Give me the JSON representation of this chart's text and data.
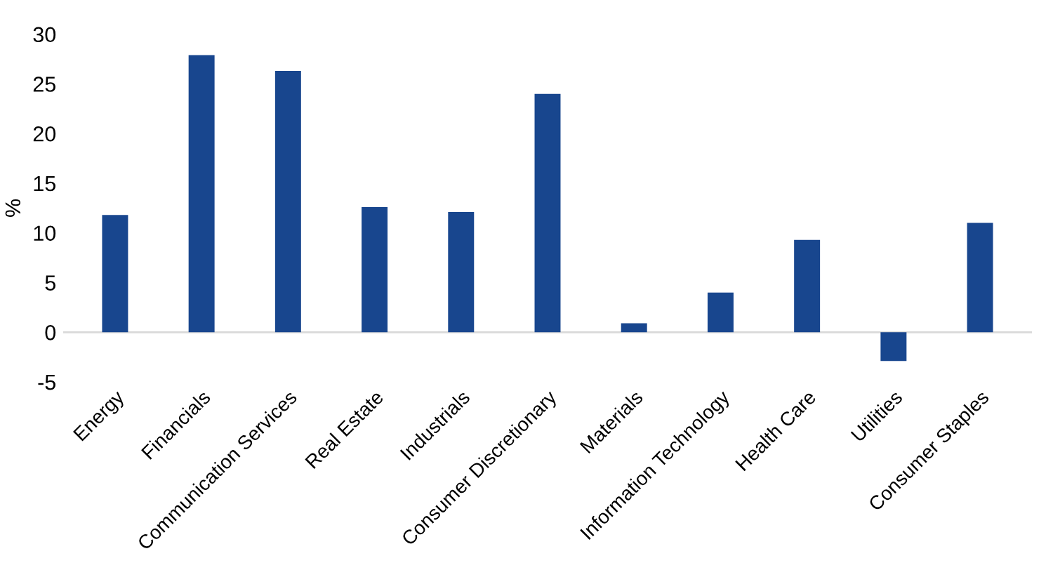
{
  "chart_data": {
    "type": "bar",
    "ylabel": "%",
    "categories": [
      "Energy",
      "Financials",
      "Communication Services",
      "Real Estate",
      "Industrials",
      "Consumer Discretionary",
      "Materials",
      "Information Technology",
      "Health Care",
      "Utilities",
      "Consumer Staples"
    ],
    "values": [
      11.8,
      27.9,
      26.3,
      12.6,
      12.1,
      24.0,
      0.9,
      4.0,
      9.3,
      -2.9,
      11.0
    ],
    "color": "#18468e",
    "ylim": [
      -5,
      30
    ],
    "yticks": [
      -5,
      0,
      5,
      10,
      15,
      20,
      25,
      30
    ],
    "grid": false,
    "ref_lines": [
      {
        "axis": "y",
        "value": 0,
        "color": "#d9d9d9"
      }
    ]
  }
}
